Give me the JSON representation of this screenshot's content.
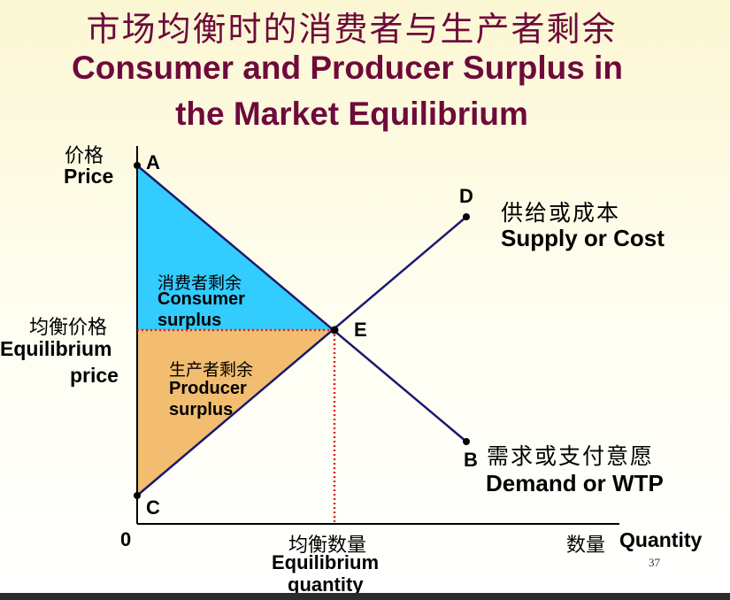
{
  "title": {
    "zh": "市场均衡时的消费者与生产者剩余",
    "en_line1": "Consumer and Producer Surplus in",
    "en_line2": "the Market Equilibrium"
  },
  "axes": {
    "y_label_zh": "价格",
    "y_label_en": "Price",
    "x_label_zh": "数量",
    "x_label_en": "Quantity",
    "origin": "0"
  },
  "equilibrium": {
    "price_zh": "均衡价格",
    "price_en_1": "Equilibrium",
    "price_en_2": "price",
    "quantity_zh": "均衡数量",
    "quantity_en_1": "Equilibrium",
    "quantity_en_2": "quantity"
  },
  "points": {
    "A": "A",
    "B": "B",
    "C": "C",
    "D": "D",
    "E": "E"
  },
  "curves": {
    "supply_zh": "供给或成本",
    "supply_en": "Supply or Cost",
    "demand_zh": "需求或支付意愿",
    "demand_en": "Demand or WTP"
  },
  "areas": {
    "consumer_zh": "消费者剩余",
    "consumer_en_1": "Consumer",
    "consumer_en_2": "surplus",
    "consumer_color": "#33ccff",
    "producer_zh": "生产者剩余",
    "producer_en_1": "Producer",
    "producer_en_2": "surplus",
    "producer_color": "#f2bd70"
  },
  "colors": {
    "title": "#6e0a3c",
    "curve": "#1a1a6e",
    "dashed": "#e02020"
  },
  "page_number": "37"
}
